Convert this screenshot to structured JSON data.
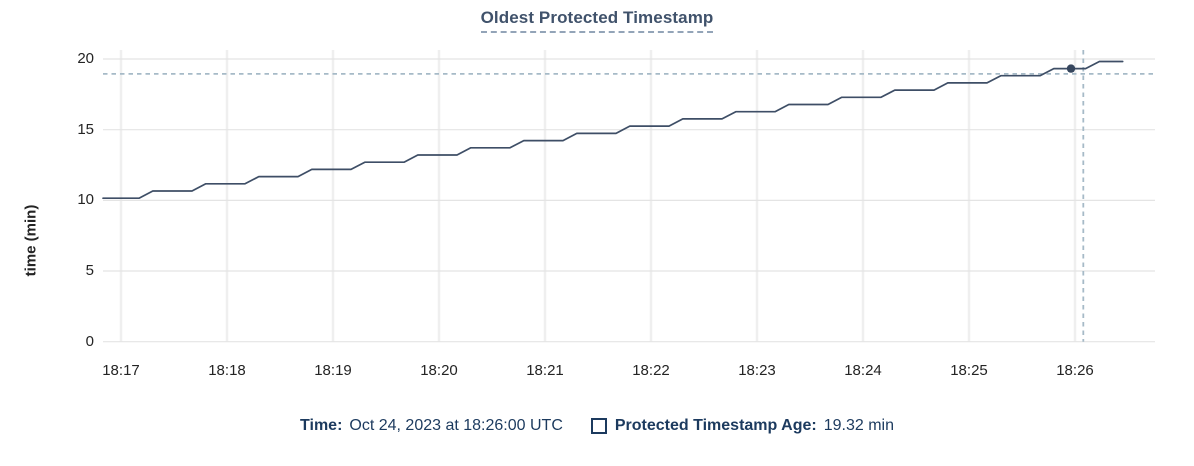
{
  "title": "Oldest Protected Timestamp",
  "colors": {
    "line": "#3e4e66",
    "marker_dot": "#36465e",
    "crosshair": "#a6bac7",
    "grid_horizontal": "#e4e4e4",
    "grid_vertical": "#efefef",
    "title_text": "#40526b",
    "title_underline": "#93a4b8",
    "axis_text": "#242424",
    "tooltip_text": "#1c3a5e"
  },
  "chart_data": {
    "type": "line",
    "title": "Oldest Protected Timestamp",
    "xlabel": "",
    "ylabel": "time (min)",
    "ylim": [
      0,
      20
    ],
    "yticks": [
      0,
      5,
      10,
      15,
      20
    ],
    "xticks": [
      "18:17",
      "18:18",
      "18:19",
      "18:20",
      "18:21",
      "18:22",
      "18:23",
      "18:24",
      "18:25",
      "18:26"
    ],
    "x_unit": "minutes after 18:17 UTC",
    "grid": true,
    "legend_position": "bottom",
    "series": [
      {
        "name": "Protected Timestamp Age (min)",
        "points": [
          [
            -0.17,
            10.15
          ],
          [
            0.17,
            10.15
          ],
          [
            0.3,
            10.66
          ],
          [
            0.67,
            10.66
          ],
          [
            0.8,
            11.17
          ],
          [
            1.17,
            11.17
          ],
          [
            1.3,
            11.68
          ],
          [
            1.67,
            11.68
          ],
          [
            1.8,
            12.19
          ],
          [
            2.17,
            12.19
          ],
          [
            2.3,
            12.7
          ],
          [
            2.67,
            12.7
          ],
          [
            2.8,
            13.21
          ],
          [
            3.17,
            13.21
          ],
          [
            3.3,
            13.72
          ],
          [
            3.67,
            13.72
          ],
          [
            3.8,
            14.23
          ],
          [
            4.17,
            14.23
          ],
          [
            4.3,
            14.74
          ],
          [
            4.67,
            14.74
          ],
          [
            4.8,
            15.25
          ],
          [
            5.17,
            15.25
          ],
          [
            5.3,
            15.76
          ],
          [
            5.67,
            15.76
          ],
          [
            5.8,
            16.27
          ],
          [
            6.17,
            16.27
          ],
          [
            6.3,
            16.78
          ],
          [
            6.67,
            16.78
          ],
          [
            6.8,
            17.29
          ],
          [
            7.17,
            17.29
          ],
          [
            7.3,
            17.8
          ],
          [
            7.67,
            17.8
          ],
          [
            7.8,
            18.31
          ],
          [
            8.17,
            18.31
          ],
          [
            8.3,
            18.82
          ],
          [
            8.67,
            18.82
          ],
          [
            8.8,
            19.32
          ],
          [
            9.1,
            19.32
          ],
          [
            9.23,
            19.82
          ],
          [
            9.45,
            19.82
          ]
        ]
      }
    ],
    "crosshair": {
      "hover_time": "18:26:00",
      "hover_x_min": 9.0,
      "hover_value": 19.32,
      "h_line_value": 18.95,
      "v_line_x_min": 9.05
    }
  },
  "tooltip": {
    "time_label": "Time:",
    "time_value": "Oct 24, 2023 at 18:26:00 UTC",
    "series_label": "Protected Timestamp Age:",
    "series_value": "19.32 min"
  }
}
